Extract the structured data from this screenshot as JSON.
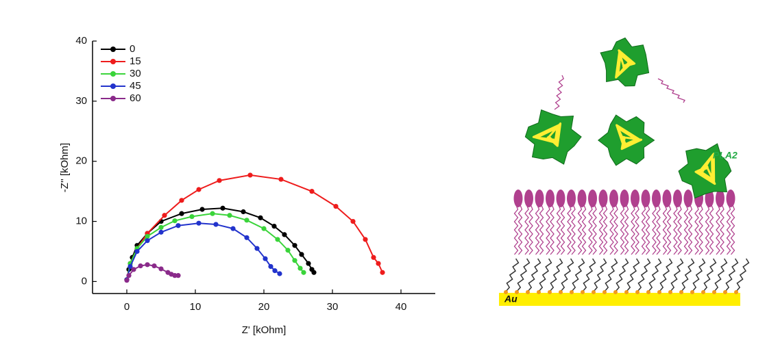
{
  "chart_data": {
    "type": "line",
    "x_label": "Z' [kOhm]",
    "y_label": "-Z'' [kOhm]",
    "xlim": [
      -5,
      45
    ],
    "ylim": [
      -2,
      40
    ],
    "xticks": [
      0,
      10,
      20,
      30,
      40
    ],
    "yticks": [
      0,
      10,
      20,
      30,
      40
    ],
    "legend": "top-left",
    "series": [
      {
        "name": "0",
        "color": "#000000",
        "x": [
          0,
          0.3,
          0.8,
          1.5,
          3,
          5,
          8,
          11,
          14,
          17,
          19.5,
          21.5,
          23,
          24.5,
          25.5,
          26.5,
          27,
          27.3
        ],
        "values": [
          0.3,
          2,
          4,
          6,
          8,
          10,
          11.3,
          12,
          12.2,
          11.6,
          10.6,
          9.2,
          7.8,
          6,
          4.5,
          3,
          2,
          1.5
        ]
      },
      {
        "name": "15",
        "color": "#ee1c1c",
        "x": [
          0,
          0.5,
          1.5,
          3,
          5.5,
          8,
          10.5,
          13.5,
          18,
          22.5,
          27,
          30.5,
          33,
          34.8,
          36,
          36.7,
          37.3
        ],
        "values": [
          0.3,
          3,
          5.5,
          8,
          11,
          13.5,
          15.3,
          16.8,
          17.7,
          17,
          15,
          12.5,
          10,
          7,
          4,
          3,
          1.5
        ]
      },
      {
        "name": "30",
        "color": "#3ad43a",
        "x": [
          0,
          0.5,
          1.5,
          3,
          5,
          7,
          9.5,
          12.5,
          15,
          17.5,
          20,
          22,
          23.5,
          24.5,
          25.3,
          25.8
        ],
        "values": [
          0.3,
          3,
          5.5,
          7.5,
          9,
          10.1,
          10.8,
          11.3,
          11,
          10.2,
          8.8,
          7,
          5.2,
          3.5,
          2.2,
          1.5
        ]
      },
      {
        "name": "45",
        "color": "#2233cc",
        "x": [
          0,
          0.5,
          1.5,
          3,
          5,
          7.5,
          10.5,
          13,
          15.5,
          17.5,
          19,
          20.2,
          21,
          21.6,
          22.3
        ],
        "values": [
          0.3,
          2.5,
          5,
          6.8,
          8.2,
          9.3,
          9.7,
          9.5,
          8.8,
          7.3,
          5.5,
          3.8,
          2.5,
          1.8,
          1.3
        ]
      },
      {
        "name": "60",
        "color": "#8a2a8a",
        "x": [
          0,
          0.3,
          1,
          2,
          3,
          4,
          5,
          6,
          6.5,
          7,
          7.5
        ],
        "values": [
          0.2,
          1,
          2,
          2.6,
          2.8,
          2.6,
          2.1,
          1.5,
          1.2,
          1,
          1
        ]
      }
    ]
  },
  "diagram": {
    "enzyme_label": "PLA2",
    "substrate_label": "Au"
  }
}
